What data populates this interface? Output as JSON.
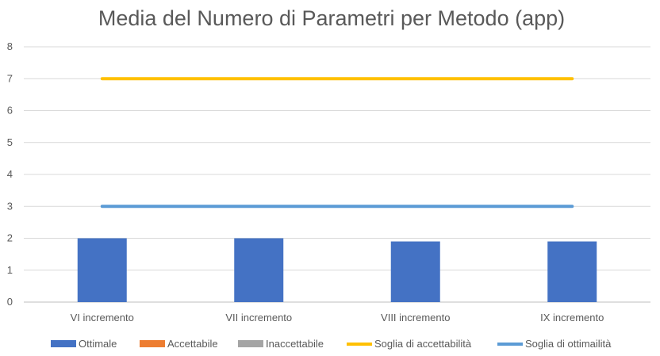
{
  "chart_data": {
    "type": "bar",
    "title": "Media del Numero di Parametri per Metodo (app)",
    "categories": [
      "VI incremento",
      "VII incremento",
      "VIII incremento",
      "IX incremento"
    ],
    "ylim": [
      0,
      8
    ],
    "yticks": [
      0,
      1,
      2,
      3,
      4,
      5,
      6,
      7,
      8
    ],
    "grid": true,
    "legend_position": "bottom",
    "series": [
      {
        "name": "Ottimale",
        "kind": "bar",
        "color": "#4472C4",
        "values": [
          2.0,
          2.0,
          1.9,
          1.9
        ]
      },
      {
        "name": "Accettabile",
        "kind": "bar",
        "color": "#ED7D31",
        "values": [
          0,
          0,
          0,
          0
        ]
      },
      {
        "name": "Inaccettabile",
        "kind": "bar",
        "color": "#A5A5A5",
        "values": [
          0,
          0,
          0,
          0
        ]
      },
      {
        "name": "Soglia di accettabilità",
        "kind": "line",
        "color": "#FFC000",
        "values": [
          7,
          7,
          7,
          7
        ]
      },
      {
        "name": "Soglia di ottimailità",
        "kind": "line",
        "color": "#5B9BD5",
        "values": [
          3,
          3,
          3,
          3
        ]
      }
    ]
  }
}
